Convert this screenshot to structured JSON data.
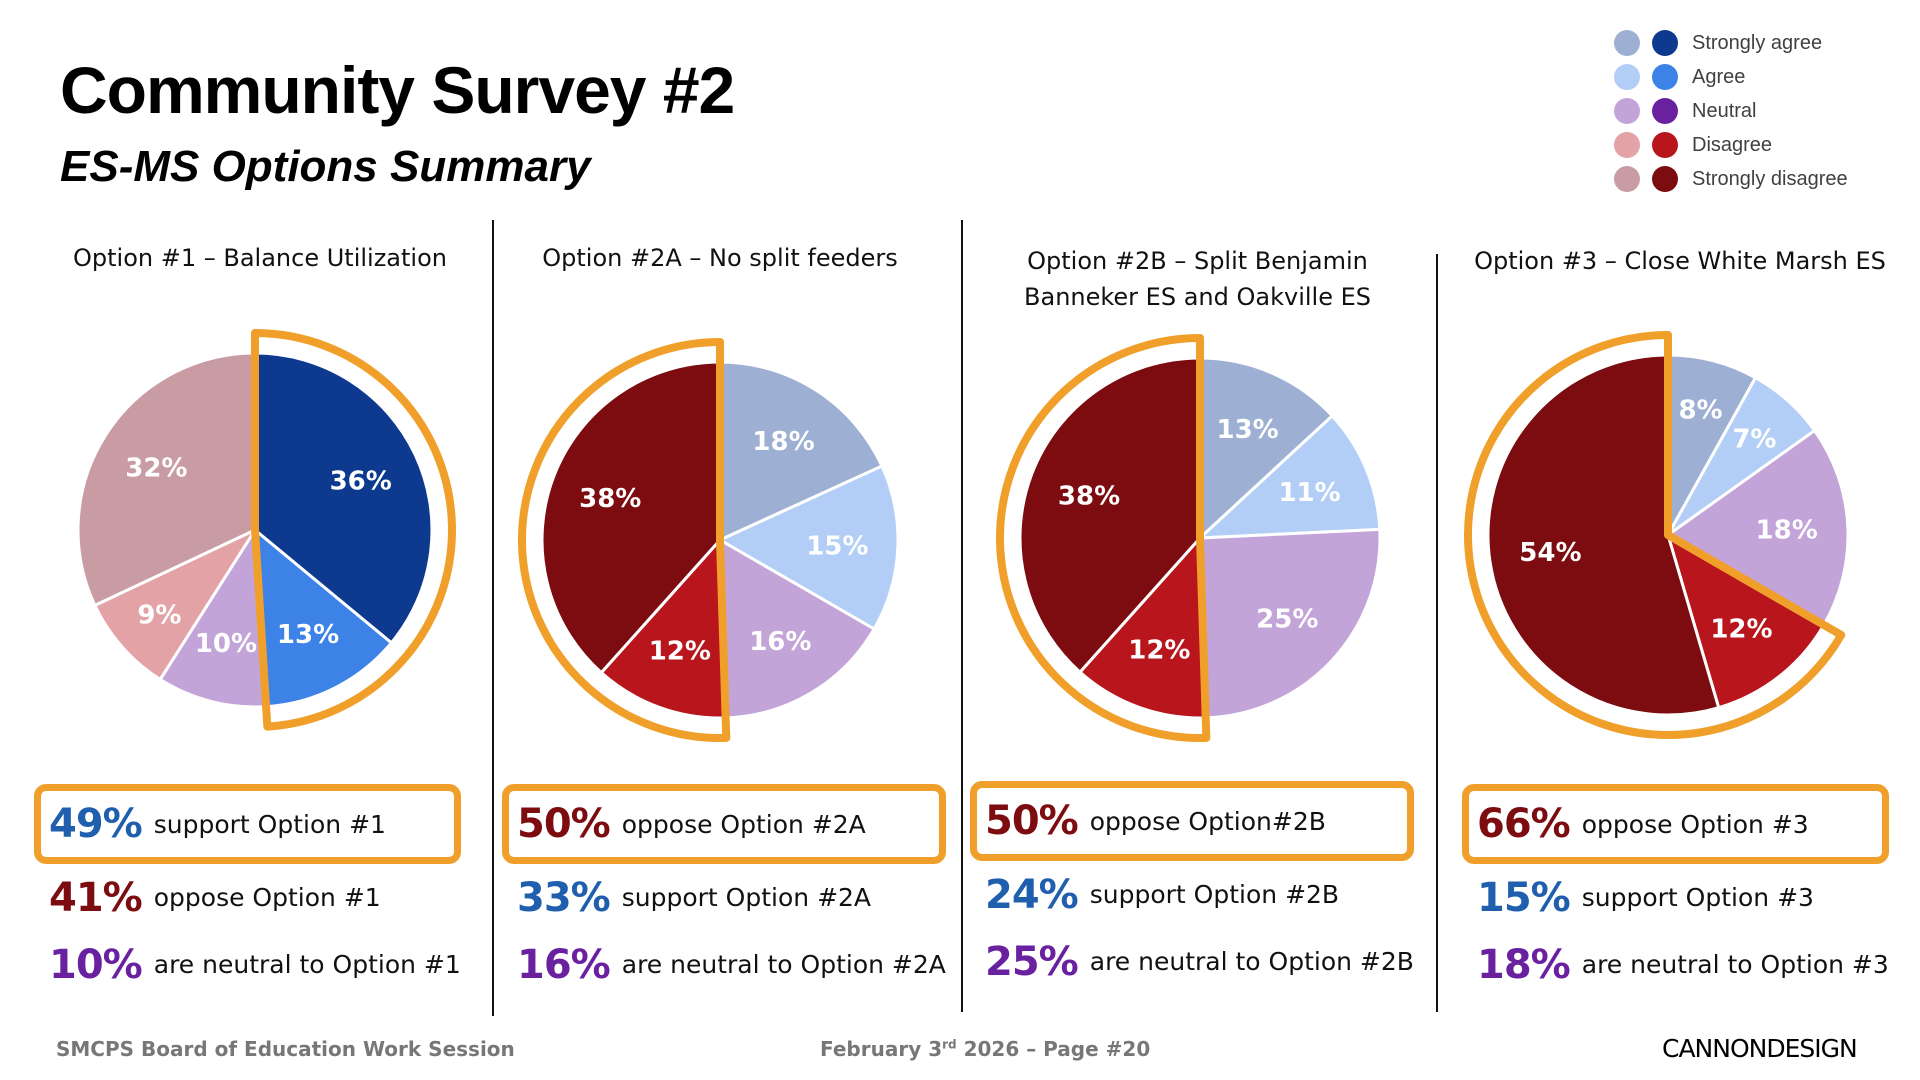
{
  "header": {
    "title": "Community Survey #2",
    "subtitle": "ES-MS Options Summary"
  },
  "legend": {
    "items": [
      {
        "label": "Strongly agree",
        "light": "#9DB0D3",
        "dark": "#0D3A8E"
      },
      {
        "label": "Agree",
        "light": "#B3CEF6",
        "dark": "#3D82E6"
      },
      {
        "label": "Neutral",
        "light": "#C3A4D8",
        "dark": "#6A21A0"
      },
      {
        "label": "Disagree",
        "light": "#E3A2A6",
        "dark": "#B8151C"
      },
      {
        "label": "Strongly disagree",
        "light": "#C99CA4",
        "dark": "#7C0C10"
      }
    ]
  },
  "colors": {
    "highlight": "#F0A02A",
    "support": "#1F5FAE",
    "oppose": "#7C0C10",
    "neutral": "#6A21A0"
  },
  "chart_data": [
    {
      "type": "pie",
      "title": "Option #1 – Balance Utilization",
      "title_lines": [
        "Option #1 – Balance Utilization"
      ],
      "categories": [
        "Strongly agree",
        "Agree",
        "Neutral",
        "Disagree",
        "Strongly disagree"
      ],
      "values": [
        36,
        13,
        10,
        9,
        32
      ],
      "labels": [
        "36%",
        "13%",
        "10%",
        "9%",
        "32%"
      ],
      "highlighted_group": "support",
      "emphasis": [
        "dark",
        "dark",
        "light",
        "light",
        "light"
      ],
      "stats": [
        {
          "pct": "49%",
          "text": "support Option #1",
          "kind": "support",
          "boxed": true
        },
        {
          "pct": "41%",
          "text": "oppose Option #1",
          "kind": "oppose",
          "boxed": false
        },
        {
          "pct": "10%",
          "text": "are neutral to Option #1",
          "kind": "neutral",
          "boxed": false
        }
      ]
    },
    {
      "type": "pie",
      "title": "Option #2A – No split feeders",
      "title_lines": [
        "Option #2A – No split feeders"
      ],
      "categories": [
        "Strongly agree",
        "Agree",
        "Neutral",
        "Disagree",
        "Strongly disagree"
      ],
      "values": [
        18,
        15,
        16,
        12,
        38
      ],
      "labels": [
        "18%",
        "15%",
        "16%",
        "12%",
        "38%"
      ],
      "highlighted_group": "oppose",
      "emphasis": [
        "light",
        "light",
        "light",
        "dark",
        "dark"
      ],
      "stats": [
        {
          "pct": "50%",
          "text": "oppose Option #2A",
          "kind": "oppose",
          "boxed": true
        },
        {
          "pct": "33%",
          "text": "support Option #2A",
          "kind": "support",
          "boxed": false
        },
        {
          "pct": "16%",
          "text": "are neutral to Option #2A",
          "kind": "neutral",
          "boxed": false
        }
      ]
    },
    {
      "type": "pie",
      "title": "Option #2B – Split Benjamin Banneker ES and Oakville ES",
      "title_lines": [
        "Option #2B – Split Benjamin",
        "Banneker ES and Oakville ES"
      ],
      "categories": [
        "Strongly agree",
        "Agree",
        "Neutral",
        "Disagree",
        "Strongly disagree"
      ],
      "values": [
        13,
        11,
        25,
        12,
        38
      ],
      "labels": [
        "13%",
        "11%",
        "25%",
        "12%",
        "38%"
      ],
      "highlighted_group": "oppose",
      "emphasis": [
        "light",
        "light",
        "light",
        "dark",
        "dark"
      ],
      "stats": [
        {
          "pct": "50%",
          "text": "oppose Option#2B",
          "kind": "oppose",
          "boxed": true
        },
        {
          "pct": "24%",
          "text": "support Option #2B",
          "kind": "support",
          "boxed": false
        },
        {
          "pct": "25%",
          "text": "are neutral to Option #2B",
          "kind": "neutral",
          "boxed": false
        }
      ]
    },
    {
      "type": "pie",
      "title": "Option #3 – Close White Marsh ES",
      "title_lines": [
        "Option #3 – Close White Marsh ES"
      ],
      "categories": [
        "Strongly agree",
        "Agree",
        "Neutral",
        "Disagree",
        "Strongly disagree"
      ],
      "values": [
        8,
        7,
        18,
        12,
        54
      ],
      "labels": [
        "8%",
        "7%",
        "18%",
        "12%",
        "54%"
      ],
      "highlighted_group": "oppose",
      "emphasis": [
        "light",
        "light",
        "light",
        "dark",
        "dark"
      ],
      "stats": [
        {
          "pct": "66%",
          "text": "oppose Option #3",
          "kind": "oppose",
          "boxed": true
        },
        {
          "pct": "15%",
          "text": "support Option #3",
          "kind": "support",
          "boxed": false
        },
        {
          "pct": "18%",
          "text": "are neutral to Option #3",
          "kind": "neutral",
          "boxed": false
        }
      ]
    }
  ],
  "footer": {
    "left": "SMCPS Board of Education Work Session",
    "date_prefix": "February 3",
    "date_sup": "rd",
    "date_suffix": " 2026 – Page #20",
    "logo": "CANNONDESIGN"
  }
}
